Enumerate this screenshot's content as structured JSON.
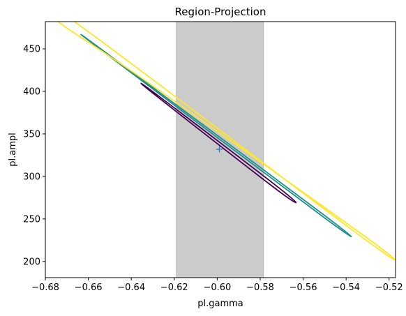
{
  "chart_data": {
    "type": "contour",
    "title": "Region-Projection",
    "xlabel": "pl.gamma",
    "ylabel": "pl.ampl",
    "xlim": [
      -0.68,
      -0.517
    ],
    "ylim": [
      181,
      482
    ],
    "xticks": [
      -0.68,
      -0.66,
      -0.64,
      -0.62,
      -0.6,
      -0.58,
      -0.56,
      -0.54,
      -0.52
    ],
    "xtick_labels": [
      "−0.68",
      "−0.66",
      "−0.64",
      "−0.62",
      "−0.60",
      "−0.58",
      "−0.56",
      "−0.54",
      "−0.52"
    ],
    "yticks": [
      200,
      250,
      300,
      350,
      400,
      450
    ],
    "ytick_labels": [
      "200",
      "250",
      "300",
      "350",
      "400",
      "450"
    ],
    "grid": false,
    "best_fit": {
      "x": -0.599,
      "y": 332,
      "marker": "+",
      "color": "#1f77b4"
    },
    "shaded_region": {
      "x_min": -0.619,
      "x_max": -0.5785,
      "color": "#cbcbcb"
    },
    "contours": [
      {
        "color": "#440154",
        "points": [
          [
            -0.6285,
            395
          ],
          [
            -0.5715,
            283
          ],
          [
            -0.5705,
            285
          ],
          [
            -0.627,
            394
          ]
        ]
      },
      {
        "color": "#21908c",
        "points": [
          [
            -0.651,
            444
          ],
          [
            -0.5505,
            255
          ],
          [
            -0.5515,
            254
          ],
          [
            -0.649,
            439
          ]
        ]
      },
      {
        "color": "#fde725",
        "points": [
          [
            -0.674,
            482
          ],
          [
            -0.6325,
            411
          ],
          [
            -0.5315,
            230
          ],
          [
            -0.5345,
            232
          ],
          [
            -0.6665,
            482
          ]
        ]
      }
    ]
  }
}
